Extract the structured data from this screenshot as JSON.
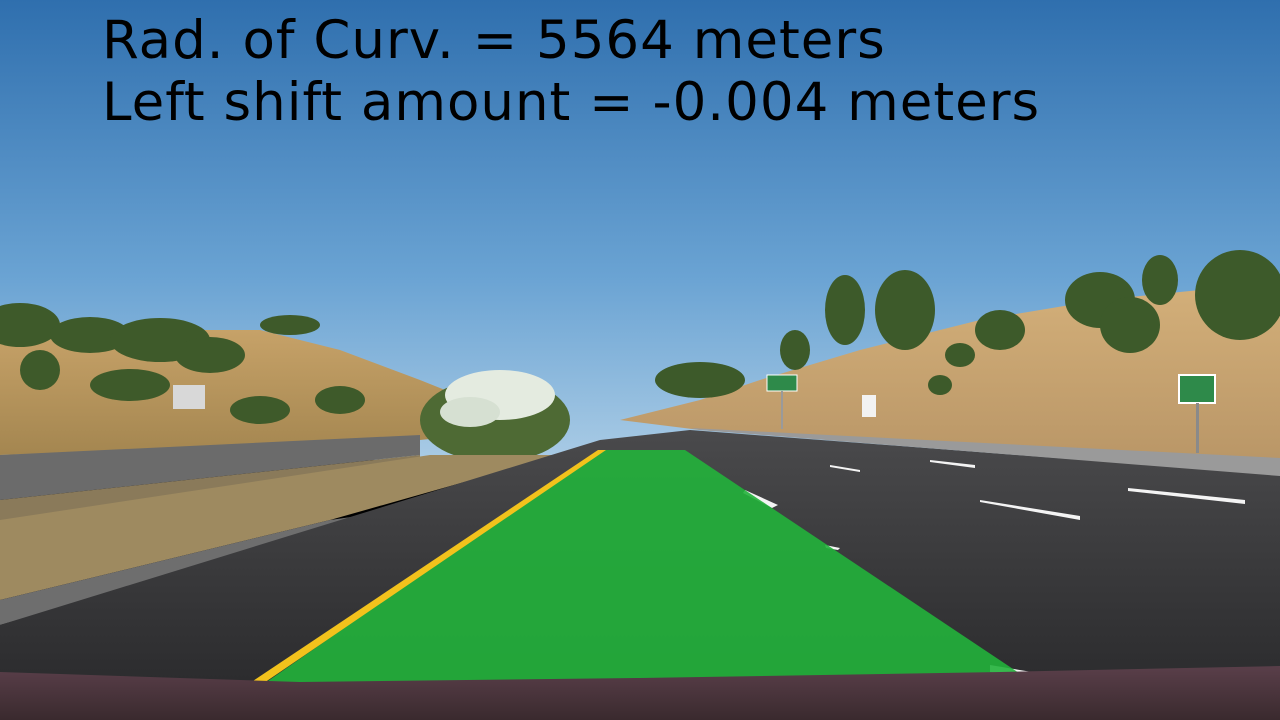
{
  "overlay": {
    "curvature_text": "Rad. of Curv. = 5564 meters",
    "shift_text": "Left shift amount = -0.004 meters"
  },
  "colors": {
    "sky_top": "#3b79b3",
    "sky_bottom": "#8ab8dd",
    "road": "#3a3a3c",
    "lane_fill": "#1fb33a",
    "lane_left_line": "#f0c020",
    "hillside": "#c7a46e",
    "hood": "#4a3a3e"
  }
}
